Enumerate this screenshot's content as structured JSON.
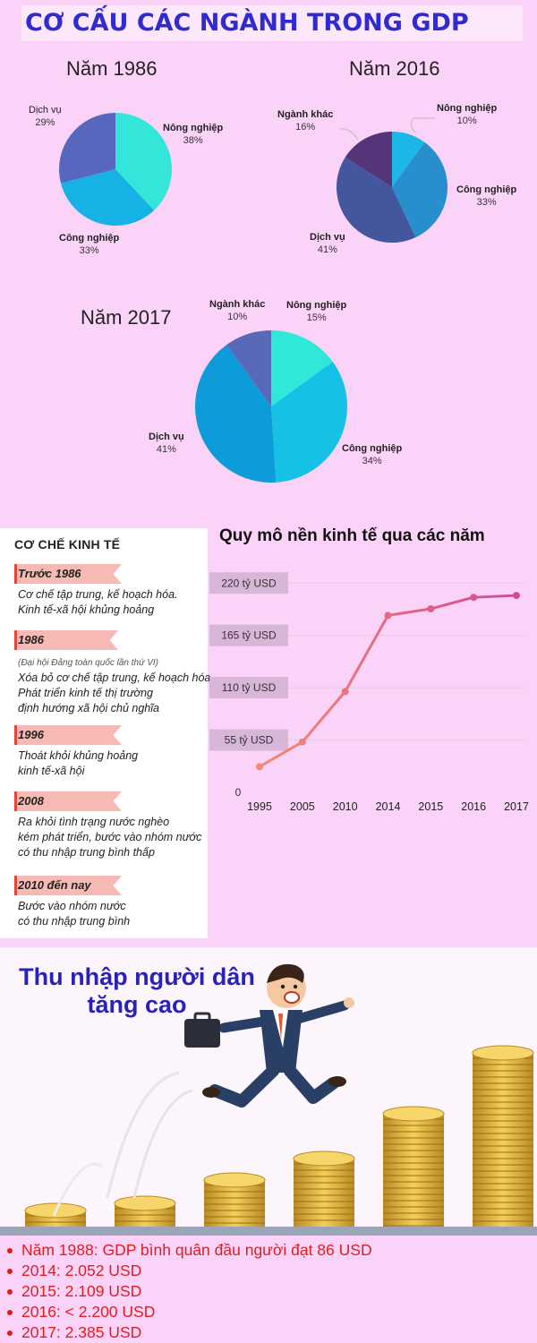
{
  "page_title": "CƠ CẤU CÁC NGÀNH TRONG GDP",
  "chart_data": [
    {
      "type": "pie",
      "title": "Năm 1986",
      "slices": [
        {
          "label": "Nông nghiệp",
          "value": 38,
          "display": "38%",
          "color": "#33e6d9"
        },
        {
          "label": "Công nghiệp",
          "value": 33,
          "display": "33%",
          "color": "#16b1e5"
        },
        {
          "label": "Dịch vụ",
          "value": 29,
          "display": "29%",
          "color": "#5667bd"
        }
      ]
    },
    {
      "type": "pie",
      "title": "Năm 2016",
      "slices": [
        {
          "label": "Nông nghiệp",
          "value": 10,
          "display": "10%",
          "color": "#1cb7e6"
        },
        {
          "label": "Công nghiệp",
          "value": 33,
          "display": "33%",
          "color": "#2790cc"
        },
        {
          "label": "Dịch vụ",
          "value": 41,
          "display": "41%",
          "color": "#44569e"
        },
        {
          "label": "Ngành khác",
          "value": 16,
          "display": "16%",
          "color": "#55357a"
        }
      ]
    },
    {
      "type": "pie",
      "title": "Năm 2017",
      "slices": [
        {
          "label": "Nông nghiệp",
          "value": 15,
          "display": "15%",
          "color": "#2fe8d8"
        },
        {
          "label": "Công nghiệp",
          "value": 34,
          "display": "34%",
          "color": "#16c1e6"
        },
        {
          "label": "Dịch vụ",
          "value": 41,
          "display": "41%",
          "color": "#0d9bd9"
        },
        {
          "label": "Ngành khác",
          "value": 10,
          "display": "10%",
          "color": "#5869b8"
        }
      ]
    },
    {
      "type": "line",
      "title": "Quy mô nền kinh tế qua các năm",
      "categories": [
        "1995",
        "2005",
        "2010",
        "2014",
        "2015",
        "2016",
        "2017"
      ],
      "values": [
        27,
        53,
        106,
        186,
        193,
        205,
        207
      ],
      "ylim": [
        0,
        240
      ],
      "y_ticks": [
        {
          "value": 0,
          "label": "0"
        },
        {
          "value": 55,
          "label": "55 tỷ USD"
        },
        {
          "value": 110,
          "label": "110 tỷ USD"
        },
        {
          "value": 165,
          "label": "165 tỷ USD"
        },
        {
          "value": 220,
          "label": "220 tỷ USD"
        }
      ],
      "grid": true,
      "line_color_start": "#f58a6f",
      "line_color_end": "#cc4b98"
    }
  ],
  "mechanism": {
    "heading": "CƠ CHẾ KINH TẾ",
    "items": [
      {
        "year": "Trước 1986",
        "note": "",
        "lines": [
          "Cơ chế tập trung, kế hoạch hóa.",
          "Kinh tế-xã hội khủng hoảng"
        ]
      },
      {
        "year": "1986",
        "note": "(Đại hội Đảng toàn quốc lần thứ VI)",
        "lines": [
          "Xóa bỏ cơ chế tập trung, kế hoạch hóa.",
          "Phát triển kinh tế thị trường",
          "định hướng xã hội chủ nghĩa"
        ]
      },
      {
        "year": "1996",
        "note": "",
        "lines": [
          "Thoát khỏi khủng hoảng",
          "kinh tế-xã hội"
        ]
      },
      {
        "year": "2008",
        "note": "",
        "lines": [
          "Ra khỏi tình trạng nước nghèo",
          "kém phát triển, bước vào nhóm nước",
          "có thu nhập trung bình thấp"
        ]
      },
      {
        "year": "2010 đến nay",
        "note": "",
        "lines": [
          "Bước vào nhóm nước",
          "có thu nhập trung bình"
        ]
      }
    ]
  },
  "income": {
    "title_line1": "Thu nhập người dân",
    "title_line2": "tăng cao",
    "bullets": [
      "Năm 1988: GDP bình quân đầu người đạt 86 USD",
      "2014: 2.052 USD",
      "2015: 2.109 USD",
      "2016: < 2.200 USD",
      "2017: 2.385 USD"
    ]
  }
}
